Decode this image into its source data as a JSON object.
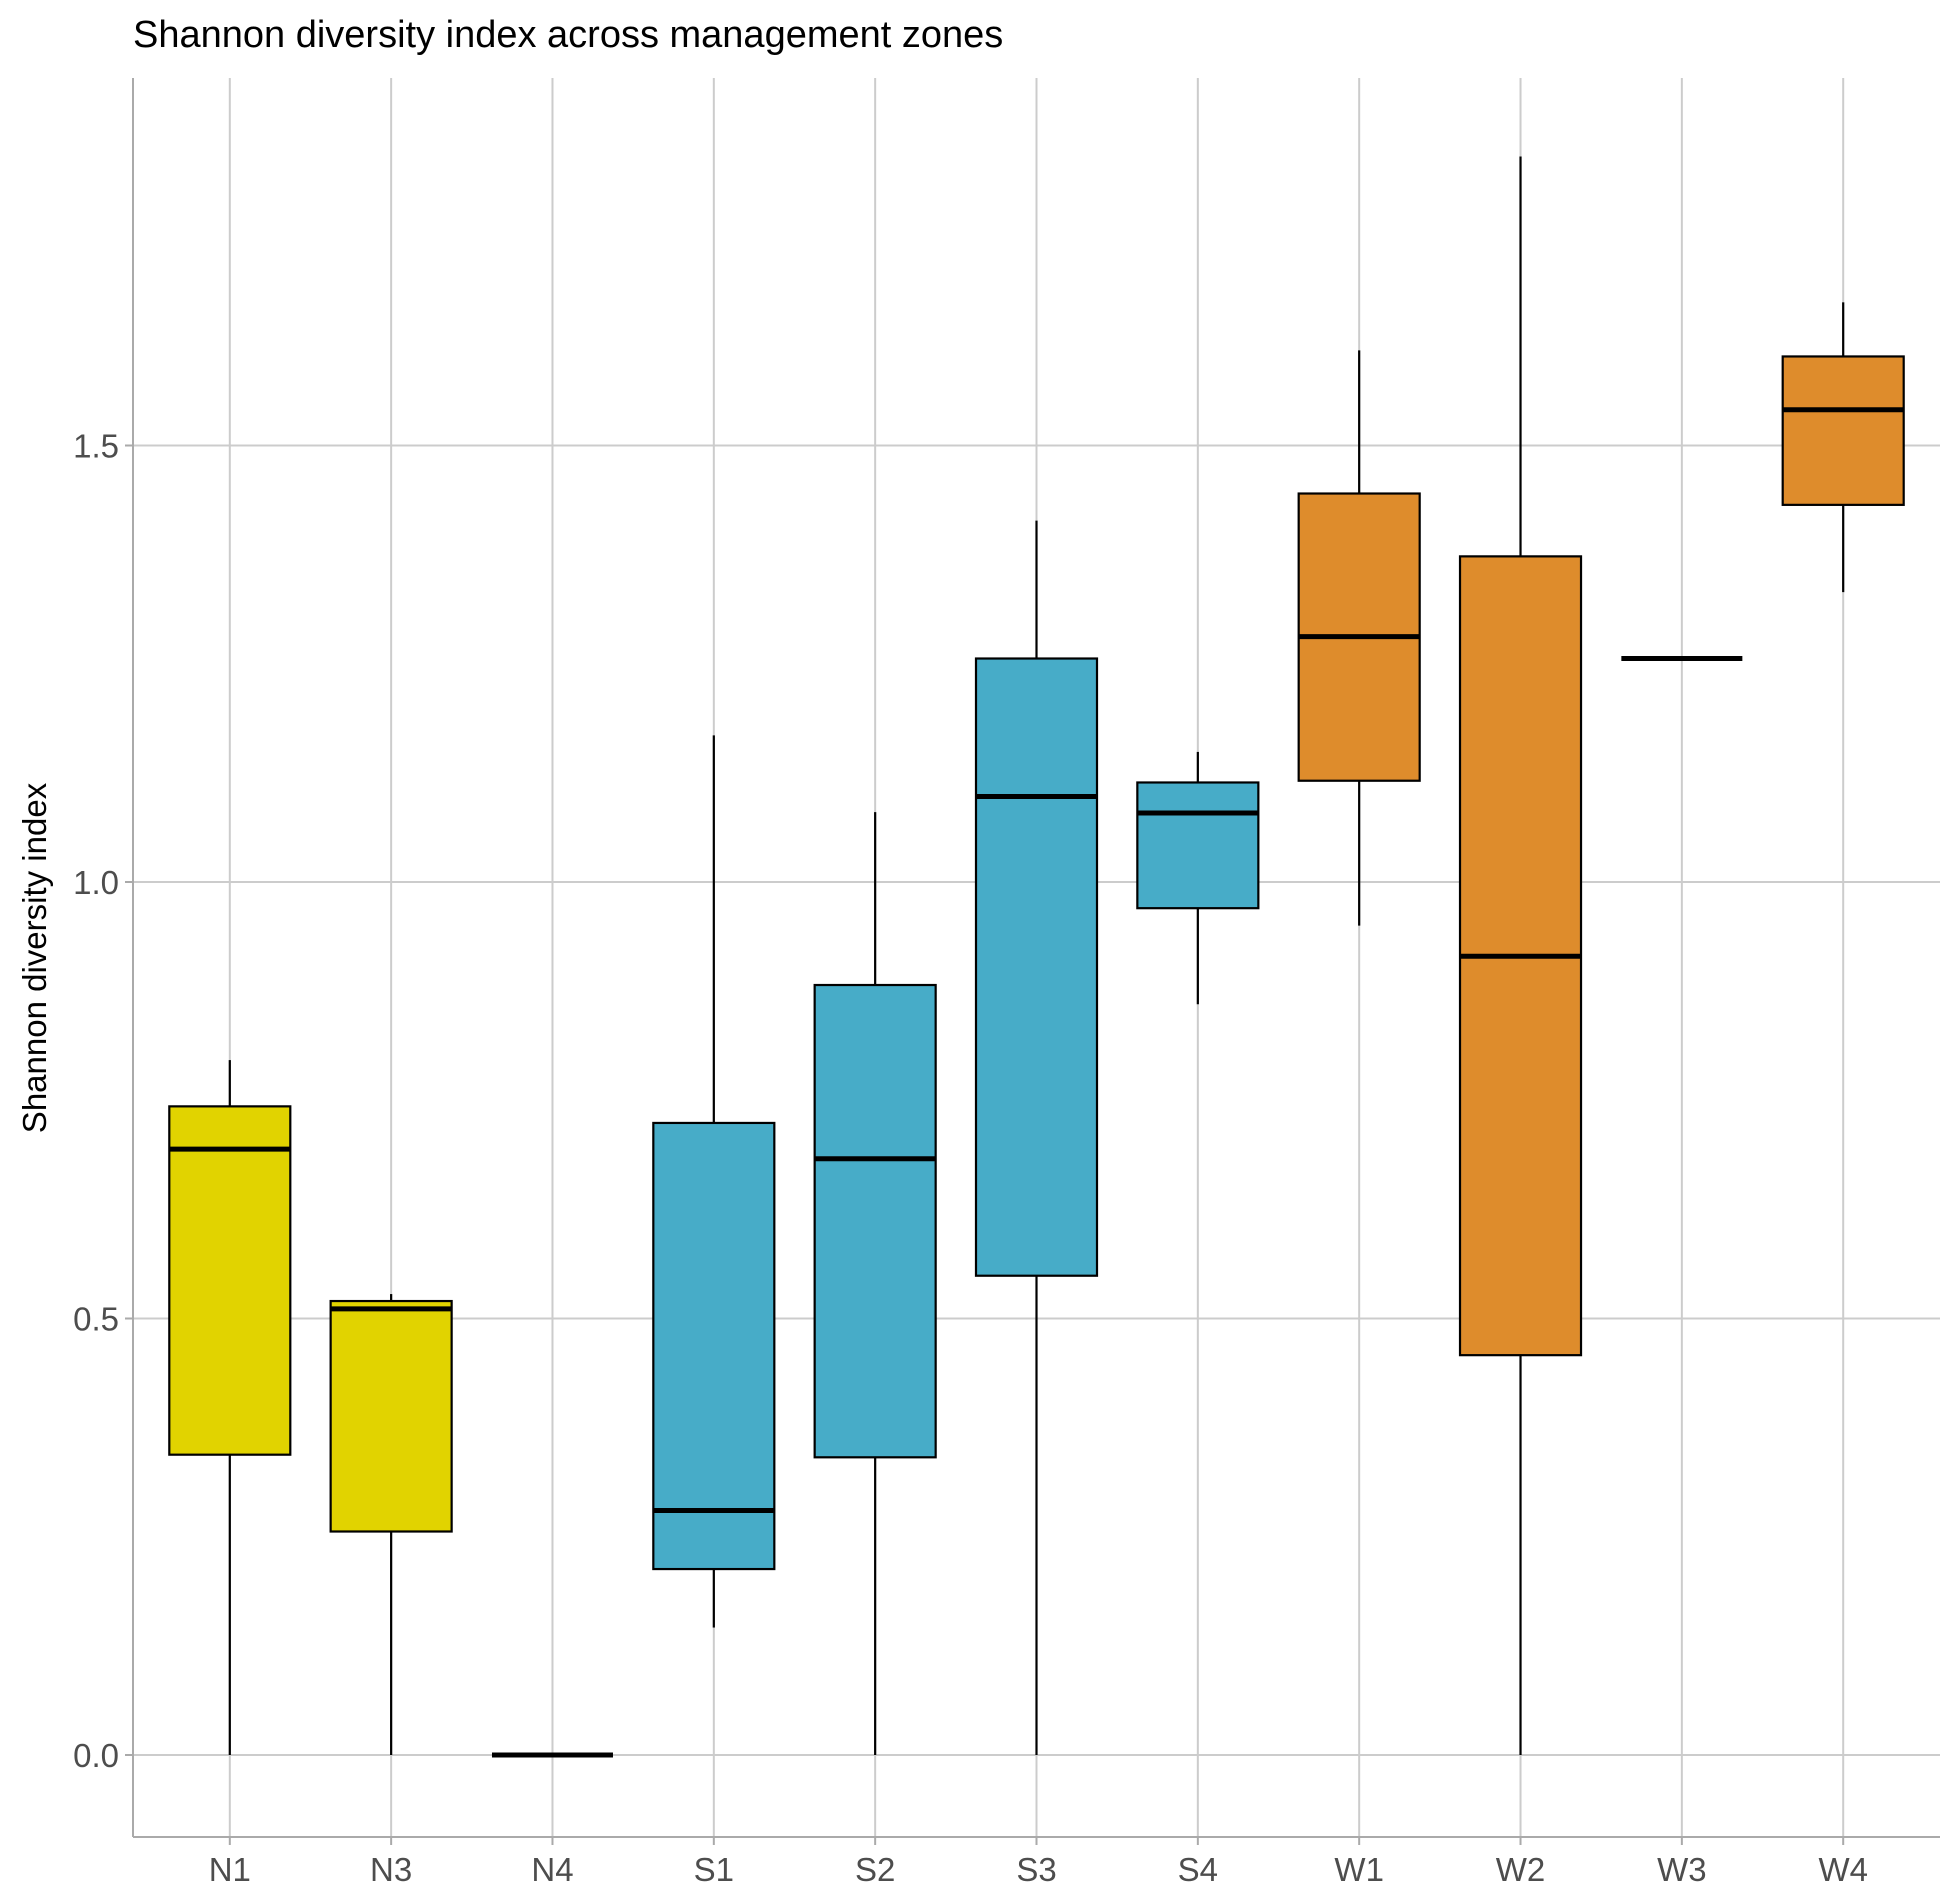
{
  "chart_data": {
    "type": "box",
    "title": "Shannon diversity index across management zones",
    "xlabel": "",
    "ylabel": "Shannon diversity index",
    "ylim": [
      -0.09,
      1.93
    ],
    "yticks": [
      0.0,
      0.5,
      1.0,
      1.5
    ],
    "ytick_labels": [
      "0.0",
      "0.5",
      "1.0",
      "1.5"
    ],
    "grid": true,
    "legend": "none",
    "categories": [
      "N1",
      "N3",
      "N4",
      "S1",
      "S2",
      "S3",
      "S4",
      "W1",
      "W2",
      "W3",
      "W4"
    ],
    "boxes": [
      {
        "label": "N1",
        "min": 0.0,
        "q1": 0.344,
        "median": 0.694,
        "q3": 0.743,
        "max": 0.796,
        "color": "#E1D300"
      },
      {
        "label": "N3",
        "min": 0.0,
        "q1": 0.256,
        "median": 0.511,
        "q3": 0.52,
        "max": 0.528,
        "color": "#E1D300"
      },
      {
        "label": "N4",
        "min": 0.0,
        "q1": 0.0,
        "median": 0.0,
        "q3": 0.0,
        "max": 0.0,
        "color": "#E1D300"
      },
      {
        "label": "S1",
        "min": 0.146,
        "q1": 0.213,
        "median": 0.28,
        "q3": 0.724,
        "max": 1.168,
        "color": "#47ACC8"
      },
      {
        "label": "S2",
        "min": 0.0,
        "q1": 0.341,
        "median": 0.683,
        "q3": 0.882,
        "max": 1.08,
        "color": "#47ACC8"
      },
      {
        "label": "S3",
        "min": 0.0,
        "q1": 0.549,
        "median": 1.098,
        "q3": 1.256,
        "max": 1.414,
        "color": "#47ACC8"
      },
      {
        "label": "S4",
        "min": 0.86,
        "q1": 0.97,
        "median": 1.079,
        "q3": 1.114,
        "max": 1.149,
        "color": "#47ACC8"
      },
      {
        "label": "W1",
        "min": 0.95,
        "q1": 1.116,
        "median": 1.281,
        "q3": 1.445,
        "max": 1.609,
        "color": "#DE8C2C"
      },
      {
        "label": "W2",
        "min": 0.0,
        "q1": 0.458,
        "median": 0.915,
        "q3": 1.373,
        "max": 1.831,
        "color": "#DE8C2C"
      },
      {
        "label": "W3",
        "min": 1.256,
        "q1": 1.256,
        "median": 1.256,
        "q3": 1.256,
        "max": 1.256,
        "color": "#DE8C2C"
      },
      {
        "label": "W4",
        "min": 1.332,
        "q1": 1.432,
        "median": 1.541,
        "q3": 1.602,
        "max": 1.664,
        "color": "#DE8C2C"
      }
    ]
  }
}
